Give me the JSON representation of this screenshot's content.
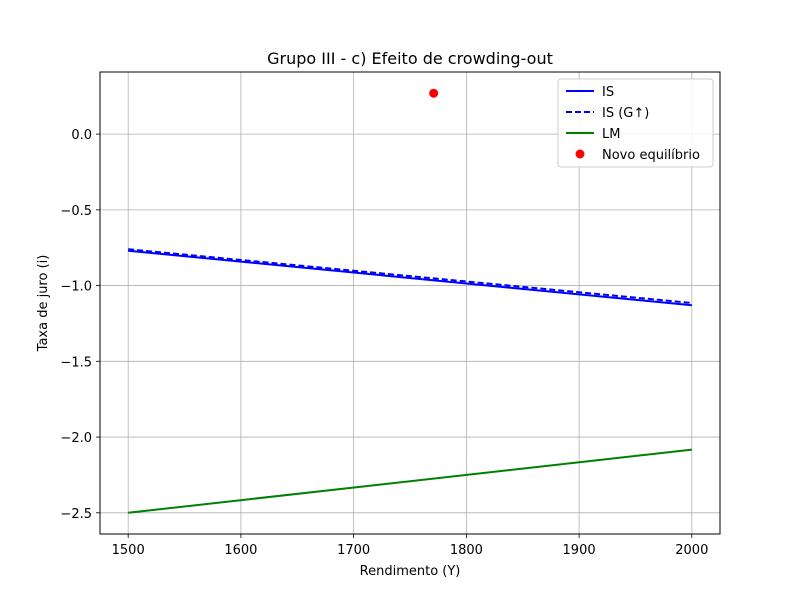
{
  "chart_data": {
    "type": "line",
    "title": "Grupo III - c) Efeito de crowding-out",
    "xlabel": "Rendimento (Y)",
    "ylabel": "Taxa de juro (i)",
    "xlim": [
      1475,
      2025
    ],
    "ylim": [
      -2.64,
      0.41
    ],
    "xticks": [
      1500,
      1600,
      1700,
      1800,
      1900,
      2000
    ],
    "xtick_labels": [
      "1500",
      "1600",
      "1700",
      "1800",
      "1900",
      "2000"
    ],
    "yticks": [
      0.0,
      -0.5,
      -1.0,
      -1.5,
      -2.0,
      -2.5
    ],
    "ytick_labels": [
      "0.0",
      "−0.5",
      "−1.0",
      "−1.5",
      "−2.0",
      "−2.5"
    ],
    "grid": true,
    "legend_position": "top-right",
    "series": [
      {
        "name": "IS",
        "kind": "line",
        "style": "solid",
        "color": "#0000ff",
        "x": [
          1500,
          2000
        ],
        "y": [
          -0.77,
          -1.13
        ]
      },
      {
        "name": "IS (G↑)",
        "kind": "line",
        "style": "dashed",
        "color": "#0000ff",
        "x": [
          1500,
          2000
        ],
        "y": [
          -0.76,
          -1.115
        ]
      },
      {
        "name": "LM",
        "kind": "line",
        "style": "solid",
        "color": "#008000",
        "x": [
          1500,
          2000
        ],
        "y": [
          -2.5,
          -2.083
        ]
      },
      {
        "name": "Novo equilíbrio",
        "kind": "point",
        "color": "#ff0000",
        "x": [
          1771
        ],
        "y": [
          0.27
        ]
      }
    ]
  }
}
